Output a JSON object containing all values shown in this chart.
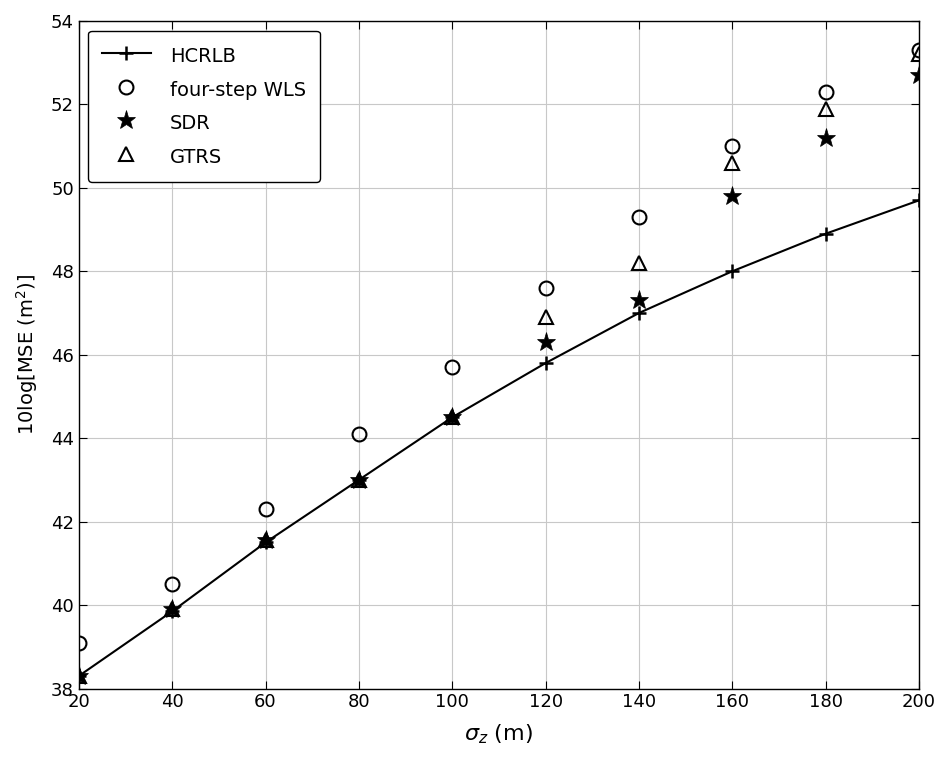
{
  "x": [
    20,
    40,
    60,
    80,
    100,
    120,
    140,
    160,
    180,
    200
  ],
  "hcrlb": [
    38.3,
    39.85,
    41.5,
    43.0,
    44.5,
    45.8,
    47.0,
    48.0,
    48.9,
    49.7
  ],
  "four_step_wls": [
    39.1,
    40.5,
    42.3,
    44.1,
    45.7,
    47.6,
    49.3,
    51.0,
    52.3,
    53.3
  ],
  "sdr": [
    38.3,
    39.9,
    41.55,
    43.0,
    44.5,
    46.3,
    47.3,
    49.8,
    51.2,
    52.7
  ],
  "gtrs": [
    38.3,
    39.9,
    41.55,
    43.0,
    44.5,
    46.9,
    48.2,
    50.6,
    51.9,
    53.2
  ],
  "color": "#000000",
  "xlabel": "$\\sigma_z$ (m)",
  "ylabel": "10log[MSE (m$^2$)]",
  "xlim": [
    20,
    200
  ],
  "ylim": [
    38,
    54
  ],
  "xticks": [
    20,
    40,
    60,
    80,
    100,
    120,
    140,
    160,
    180,
    200
  ],
  "yticks": [
    38,
    40,
    42,
    44,
    46,
    48,
    50,
    52,
    54
  ],
  "legend_labels": [
    "HCRLB",
    "four-step WLS",
    "SDR",
    "GTRS"
  ],
  "grid_color": "#c8c8c8",
  "background_color": "#ffffff",
  "linewidth": 1.5
}
